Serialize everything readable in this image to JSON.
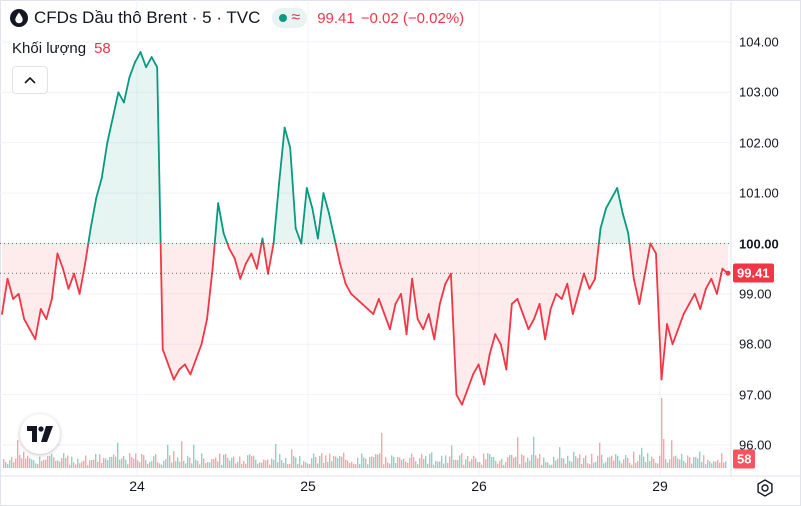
{
  "legend": {
    "title": "CFDs Dầu thô Brent · 5 · TVC",
    "last_price": "99.41",
    "change": "−0.02 (−0.02%)",
    "volume_label": "Khối lượng",
    "volume_value": "58"
  },
  "y_axis": {
    "ticks": [
      "104.00",
      "103.00",
      "102.00",
      "101.00",
      "100.00",
      "99.00",
      "98.00",
      "97.00",
      "96.00"
    ],
    "bold_tick": "100.00",
    "price_badge": "99.41",
    "volume_badge": "58"
  },
  "x_axis": {
    "ticks": [
      "24",
      "25",
      "26",
      "29"
    ]
  },
  "colors": {
    "up": "#089981",
    "down": "#f23645",
    "up_fill": "rgba(8,153,129,0.10)",
    "down_fill": "rgba(242,54,69,0.10)",
    "grid": "#f0f3fa",
    "volume_up": "rgba(8,153,129,0.45)",
    "volume_down": "rgba(242,54,69,0.45)"
  },
  "icons": {
    "legend": "oil-drop-icon",
    "collapse": "chevron-up-icon",
    "logo": "tradingview-logo-icon",
    "settings": "gear-icon"
  },
  "chart_data": {
    "type": "area",
    "title": "CFDs Dầu thô Brent · 5 · TVC",
    "baseline": 100.0,
    "last_value": 99.41,
    "ylim": [
      95.55,
      104.35
    ],
    "x_ticks": [
      "24",
      "25",
      "26",
      "29"
    ],
    "grid": true,
    "series": [
      {
        "name": "CFDs Dầu thô Brent",
        "values": [
          98.6,
          99.3,
          98.9,
          99.0,
          98.5,
          98.3,
          98.1,
          98.7,
          98.5,
          98.9,
          99.8,
          99.5,
          99.1,
          99.4,
          99.0,
          99.6,
          100.3,
          100.9,
          101.3,
          102.0,
          102.5,
          103.0,
          102.8,
          103.3,
          103.6,
          103.8,
          103.5,
          103.7,
          103.5,
          97.9,
          97.6,
          97.3,
          97.5,
          97.6,
          97.4,
          97.7,
          98.0,
          98.5,
          99.5,
          100.8,
          100.2,
          99.9,
          99.7,
          99.3,
          99.6,
          99.8,
          99.5,
          100.1,
          99.4,
          100.0,
          101.2,
          102.3,
          101.9,
          100.3,
          100.0,
          101.1,
          100.7,
          100.1,
          101.0,
          100.6,
          100.1,
          99.6,
          99.2,
          99.0,
          98.9,
          98.8,
          98.7,
          98.6,
          98.9,
          98.6,
          98.3,
          98.8,
          99.0,
          98.2,
          99.3,
          98.5,
          98.3,
          98.6,
          98.1,
          98.8,
          99.2,
          99.4,
          97.0,
          96.8,
          97.1,
          97.4,
          97.6,
          97.2,
          97.8,
          98.2,
          98.0,
          97.5,
          98.8,
          98.9,
          98.6,
          98.3,
          98.5,
          98.8,
          98.1,
          98.7,
          99.0,
          98.9,
          99.2,
          98.6,
          99.0,
          99.4,
          99.1,
          99.3,
          100.3,
          100.7,
          100.9,
          101.1,
          100.6,
          100.2,
          99.3,
          98.8,
          99.4,
          100.0,
          99.8,
          97.3,
          98.4,
          98.0,
          98.3,
          98.6,
          98.8,
          99.0,
          98.7,
          99.1,
          99.3,
          99.0,
          99.5,
          99.4
        ]
      }
    ]
  }
}
